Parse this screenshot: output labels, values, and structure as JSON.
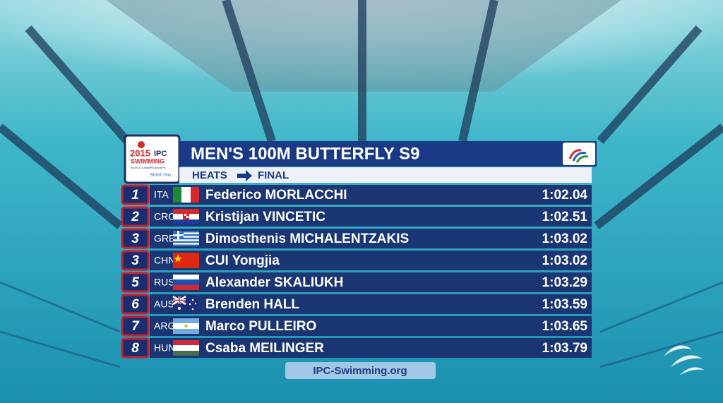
{
  "logo": {
    "year": "2015",
    "org": "IPC",
    "sport": "SWIMMING",
    "event": "WORLD CHAMPIONSHIPS",
    "sponsor": "British Gas"
  },
  "header": {
    "title": "MEN'S 100M BUTTERFLY S9",
    "stage_from": "HEATS",
    "stage_to": "FINAL"
  },
  "results": [
    {
      "rank": 1,
      "country": "ITA",
      "name": "Federico MORLACCHI",
      "time": "1:02.04"
    },
    {
      "rank": 2,
      "country": "CRO",
      "name": "Kristijan VINCETIC",
      "time": "1:02.51"
    },
    {
      "rank": 3,
      "country": "GRE",
      "name": "Dimosthenis MICHALENTZAKIS",
      "time": "1:03.02"
    },
    {
      "rank": 3,
      "country": "CHN",
      "name": "CUI Yongjia",
      "time": "1:03.02"
    },
    {
      "rank": 5,
      "country": "RUS",
      "name": "Alexander SKALIUKH",
      "time": "1:03.29"
    },
    {
      "rank": 6,
      "country": "AUS",
      "name": "Brenden HALL",
      "time": "1:03.59"
    },
    {
      "rank": 7,
      "country": "ARG",
      "name": "Marco PULLEIRO",
      "time": "1:03.65"
    },
    {
      "rank": 8,
      "country": "HUN",
      "name": "Csaba MEILINGER",
      "time": "1:03.79"
    }
  ],
  "footer": {
    "url": "IPC-Swimming.org"
  }
}
